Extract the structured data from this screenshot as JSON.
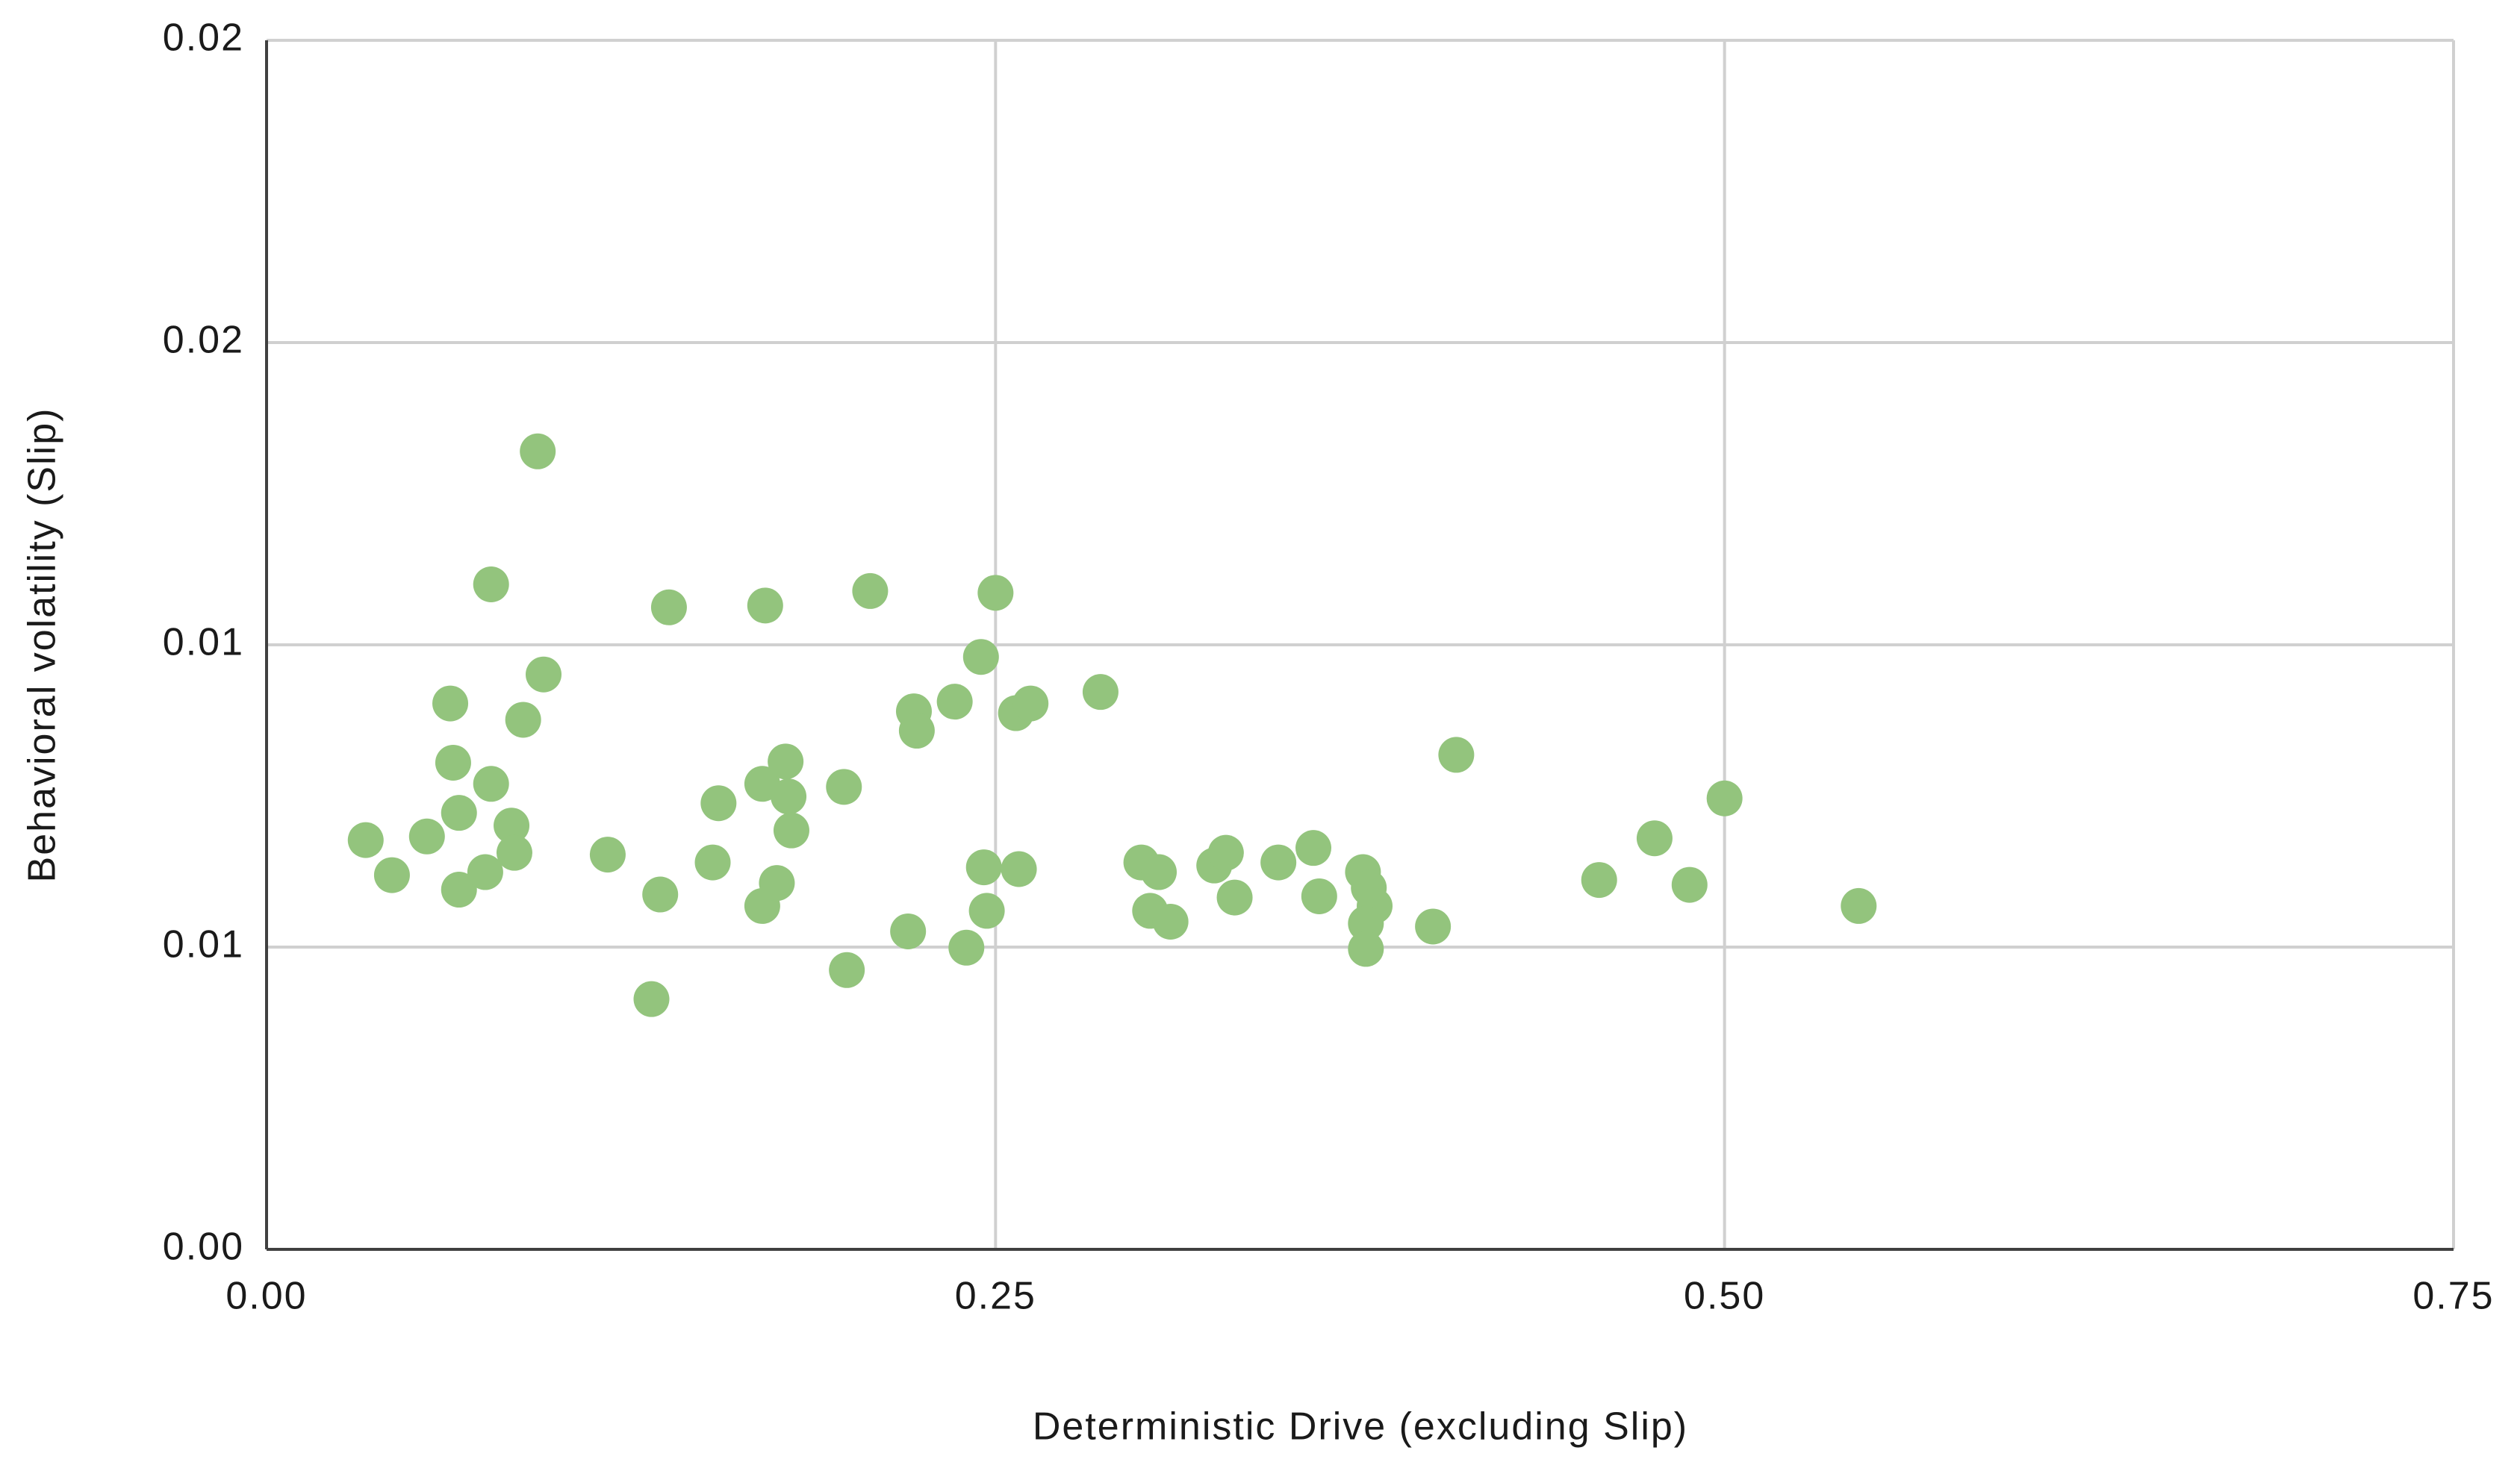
{
  "chart_data": {
    "type": "scatter",
    "x_label": "Deterministic Drive (excluding Slip)",
    "y_label": "Behavioral volatility (Slip)",
    "x": [
      0.034,
      0.043,
      0.055,
      0.063,
      0.064,
      0.066,
      0.066,
      0.077,
      0.077,
      0.075,
      0.084,
      0.085,
      0.088,
      0.093,
      0.095,
      0.117,
      0.132,
      0.135,
      0.138,
      0.153,
      0.155,
      0.17,
      0.171,
      0.17,
      0.175,
      0.178,
      0.179,
      0.18,
      0.198,
      0.199,
      0.207,
      0.22,
      0.222,
      0.223,
      0.236,
      0.24,
      0.245,
      0.246,
      0.247,
      0.25,
      0.257,
      0.258,
      0.262,
      0.286,
      0.3,
      0.303,
      0.306,
      0.31,
      0.325,
      0.329,
      0.332,
      0.347,
      0.359,
      0.361,
      0.376,
      0.378,
      0.38,
      0.377,
      0.377,
      0.4,
      0.408,
      0.457,
      0.476,
      0.488,
      0.5,
      0.546
    ],
    "values": [
      0.00677,
      0.00619,
      0.00683,
      0.00903,
      0.00805,
      0.00722,
      0.00595,
      0.011,
      0.0077,
      0.00624,
      0.00701,
      0.00656,
      0.00876,
      0.0132,
      0.00951,
      0.00653,
      0.00414,
      0.00587,
      0.01062,
      0.0064,
      0.00738,
      0.0077,
      0.01065,
      0.00568,
      0.00606,
      0.00807,
      0.00749,
      0.00693,
      0.00765,
      0.00462,
      0.01089,
      0.00526,
      0.0089,
      0.00858,
      0.00906,
      0.00499,
      0.0098,
      0.00632,
      0.0056,
      0.01086,
      0.00887,
      0.00629,
      0.00903,
      0.00922,
      0.0064,
      0.0056,
      0.00624,
      0.00542,
      0.00635,
      0.00656,
      0.00582,
      0.0064,
      0.00664,
      0.00584,
      0.00624,
      0.00598,
      0.00568,
      0.00539,
      0.00497,
      0.00534,
      0.00818,
      0.00611,
      0.0068,
      0.00603,
      0.00746,
      0.00568
    ],
    "color": "#93c47d",
    "xlim": [
      0,
      0.75
    ],
    "xticks": [
      {
        "value": 0,
        "label": "0.00"
      },
      0.25,
      {
        "value": 0.5,
        "label": "0.50"
      },
      0.75
    ],
    "ylim": [
      0,
      0.02
    ],
    "yticks": [
      {
        "value": 0,
        "label": "0.00"
      },
      {
        "value": 0.005,
        "label": "0.01"
      },
      0.01,
      {
        "value": 0.015,
        "label": "0.02"
      },
      0.02
    ],
    "grid": true
  }
}
